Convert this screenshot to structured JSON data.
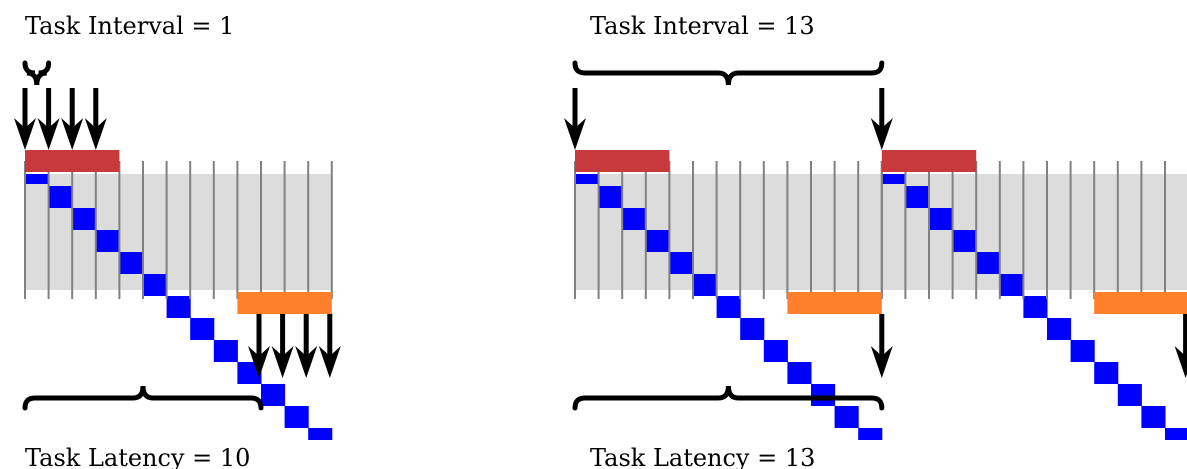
{
  "colors": {
    "background_band": "#dcdcdc",
    "step_block": "#0000ff",
    "grid_line": "#808080",
    "input_bar": "#c8393c",
    "output_bar": "#ff7f2a",
    "ink": "#000000"
  },
  "panels": [
    {
      "id": "left",
      "interval_label": "Task Interval = 1",
      "latency_label": "Task Latency = 10",
      "task_interval": 1,
      "task_latency": 10,
      "stage_count": 13
    },
    {
      "id": "right",
      "interval_label": "Task Interval = 13",
      "latency_label": "Task Latency = 13",
      "task_interval": 13,
      "task_latency": 13,
      "stage_count": 13
    }
  ]
}
